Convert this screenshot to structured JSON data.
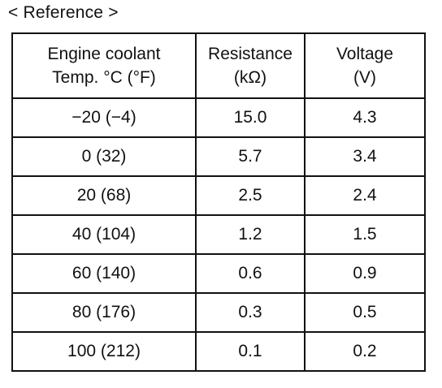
{
  "caption": "< Reference >",
  "table": {
    "headers": [
      {
        "line1": "Engine coolant",
        "line2": "Temp. °C (°F)"
      },
      {
        "line1": "Resistance",
        "line2": "(kΩ)"
      },
      {
        "line1": "Voltage",
        "line2": "(V)"
      }
    ],
    "rows": [
      {
        "temp": "−20 (−4)",
        "resistance": "15.0",
        "voltage": "4.3"
      },
      {
        "temp": "0 (32)",
        "resistance": "5.7",
        "voltage": "3.4"
      },
      {
        "temp": "20 (68)",
        "resistance": "2.5",
        "voltage": "2.4"
      },
      {
        "temp": "40 (104)",
        "resistance": "1.2",
        "voltage": "1.5"
      },
      {
        "temp": "60 (140)",
        "resistance": "0.6",
        "voltage": "0.9"
      },
      {
        "temp": "80 (176)",
        "resistance": "0.3",
        "voltage": "0.5"
      },
      {
        "temp": "100 (212)",
        "resistance": "0.1",
        "voltage": "0.2"
      }
    ]
  }
}
